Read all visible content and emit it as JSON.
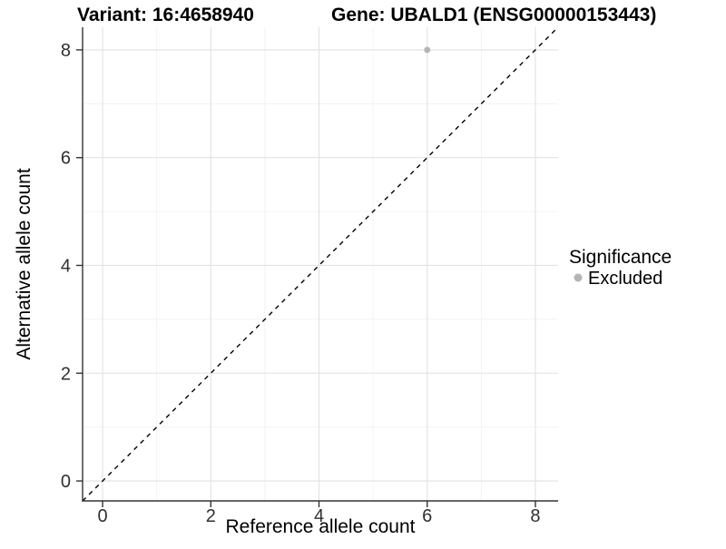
{
  "titles": {
    "variant": "Variant: 16:4658940",
    "gene": "Gene: UBALD1 (ENSG00000153443)"
  },
  "axes": {
    "x_label": "Reference allele count",
    "y_label": "Alternative allele count"
  },
  "legend": {
    "title": "Significance",
    "items": [
      {
        "label": "Excluded",
        "color": "#b5b5b5"
      }
    ]
  },
  "colors": {
    "background": "#ffffff",
    "grid_major": "#e2e2e2",
    "grid_minor": "#f0f0f0",
    "axis_line": "#333333",
    "tick_mark": "#333333",
    "tick_label": "#303030",
    "diagonal": "#000000",
    "point": "#b5b5b5"
  },
  "chart_data": {
    "type": "scatter",
    "title": "Variant: 16:4658940   Gene: UBALD1 (ENSG00000153443)",
    "xlabel": "Reference allele count",
    "ylabel": "Alternative allele count",
    "xlim": [
      -0.37,
      8.42
    ],
    "ylim": [
      -0.37,
      8.42
    ],
    "x_ticks": [
      0,
      2,
      4,
      6,
      8
    ],
    "y_ticks": [
      0,
      2,
      4,
      6,
      8
    ],
    "x_minor_ticks": [
      1,
      3,
      5,
      7
    ],
    "y_minor_ticks": [
      1,
      3,
      5,
      7
    ],
    "grid": true,
    "legend_position": "right",
    "reference_line": {
      "type": "identity",
      "style": "dashed"
    },
    "series": [
      {
        "name": "Excluded",
        "color": "#b5b5b5",
        "points": [
          {
            "x": 6,
            "y": 8
          }
        ]
      }
    ]
  }
}
